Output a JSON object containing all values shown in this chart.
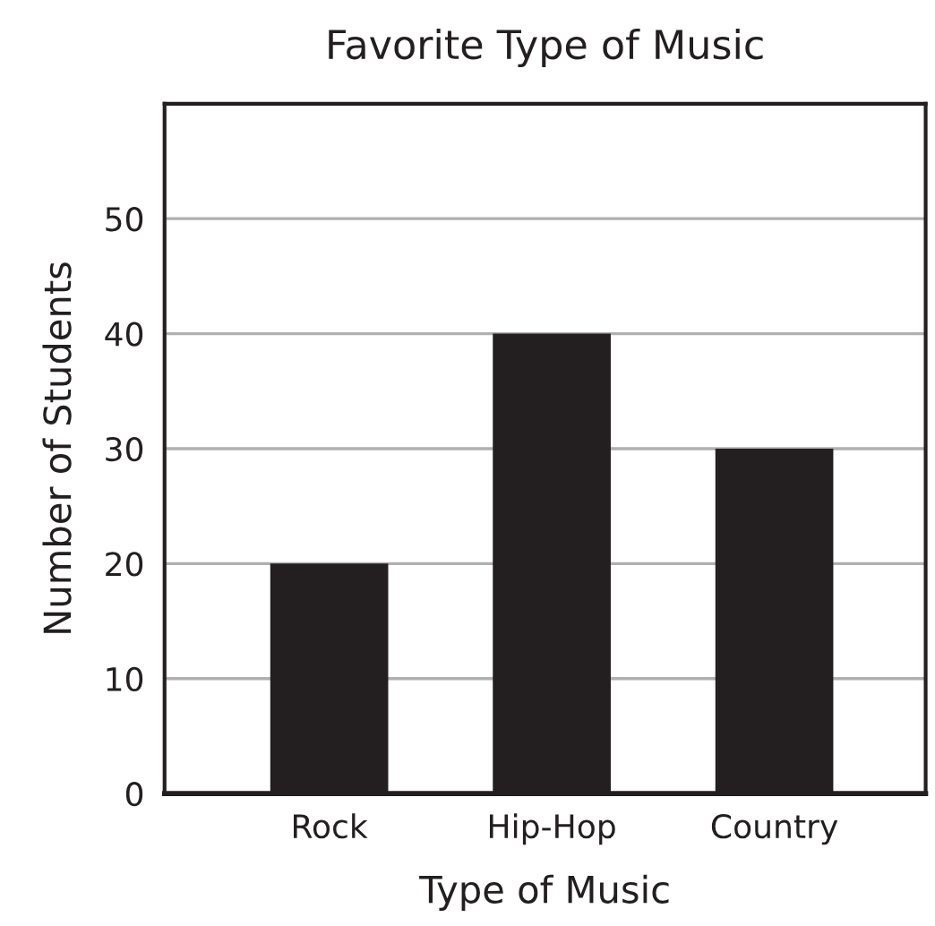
{
  "chart_data": {
    "type": "bar",
    "title": "Favorite Type of Music",
    "xlabel": "Type of Music",
    "ylabel": "Number of Students",
    "categories": [
      "Rock",
      "Hip-Hop",
      "Country"
    ],
    "values": [
      20,
      40,
      30
    ],
    "color": "#231f20",
    "ylim": [
      0,
      60
    ],
    "yticks": [
      0,
      10,
      20,
      30,
      40,
      50
    ],
    "grid": "y"
  }
}
